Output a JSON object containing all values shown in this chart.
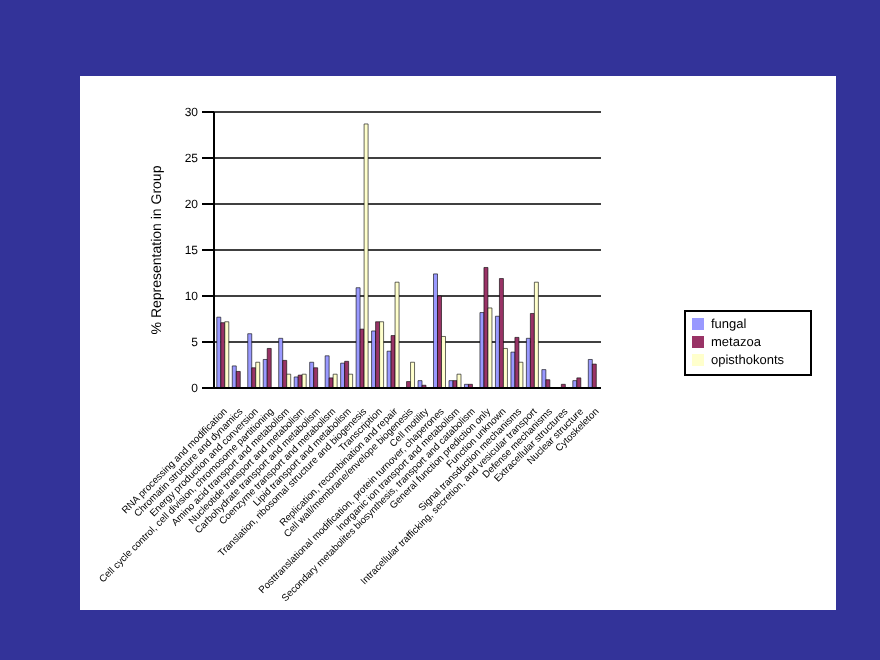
{
  "chart_data": {
    "type": "bar",
    "ylabel": "% Representation in Group",
    "categories": [
      "RNA processing and modification",
      "Chromatin structure and dynamics",
      "Energy production and conversion",
      "Cell cycle control, cell division, chromosome partitioning",
      "Amino acid transport and metabolism",
      "Nucleotide transport and metabolism",
      "Carbohydrate transport and metabolism",
      "Coenzyme transport and metabolism",
      "Lipid transport and metabolism",
      "Translation, ribosomal structure and biogenesis",
      "Transcription",
      "Replication, recombination and repair",
      "Cell wall/membrane/envelope biogenesis",
      "Cell motility",
      "Posttranslational modification, protein turnover, chaperones",
      "Inorganic ion transport and metabolism",
      "Secondary metabolites biosynthesis, transport and catabolism",
      "General function prediction only",
      "Function unknown",
      "Signal transduction mechanisms",
      "Intracellular trafficking, secretion, and vesicular transport",
      "Defense mechanisms",
      "Extracellular structures",
      "Nuclear structure",
      "Cytoskeleton"
    ],
    "series": [
      {
        "name": "fungal",
        "color": "#9999ff",
        "values": [
          7.7,
          2.4,
          5.9,
          3.1,
          5.4,
          1.2,
          2.8,
          3.5,
          2.7,
          10.9,
          6.2,
          4.0,
          null,
          0.8,
          12.4,
          0.8,
          0.4,
          8.2,
          7.8,
          3.9,
          5.4,
          2.0,
          0,
          0.8,
          3.1
        ]
      },
      {
        "name": "metazoa",
        "color": "#993366",
        "values": [
          7.1,
          1.8,
          2.2,
          4.3,
          3.0,
          1.4,
          2.2,
          1.1,
          2.9,
          6.4,
          7.2,
          5.7,
          0.7,
          0.3,
          10.0,
          0.8,
          0.4,
          13.1,
          11.9,
          5.5,
          8.1,
          0.9,
          0.4,
          1.1,
          2.6
        ]
      },
      {
        "name": "opisthokonts",
        "color": "#ffffcc",
        "values": [
          7.2,
          0,
          2.8,
          0,
          1.5,
          1.5,
          0,
          1.5,
          1.5,
          28.7,
          7.2,
          11.5,
          2.8,
          0,
          5.6,
          1.5,
          0,
          8.7,
          4.3,
          2.8,
          11.5,
          0,
          0,
          0,
          0
        ]
      }
    ],
    "ylim": [
      0,
      30
    ],
    "yticks": [
      0,
      5,
      10,
      15,
      20,
      25,
      30
    ],
    "grid": "y",
    "legend": "right"
  }
}
